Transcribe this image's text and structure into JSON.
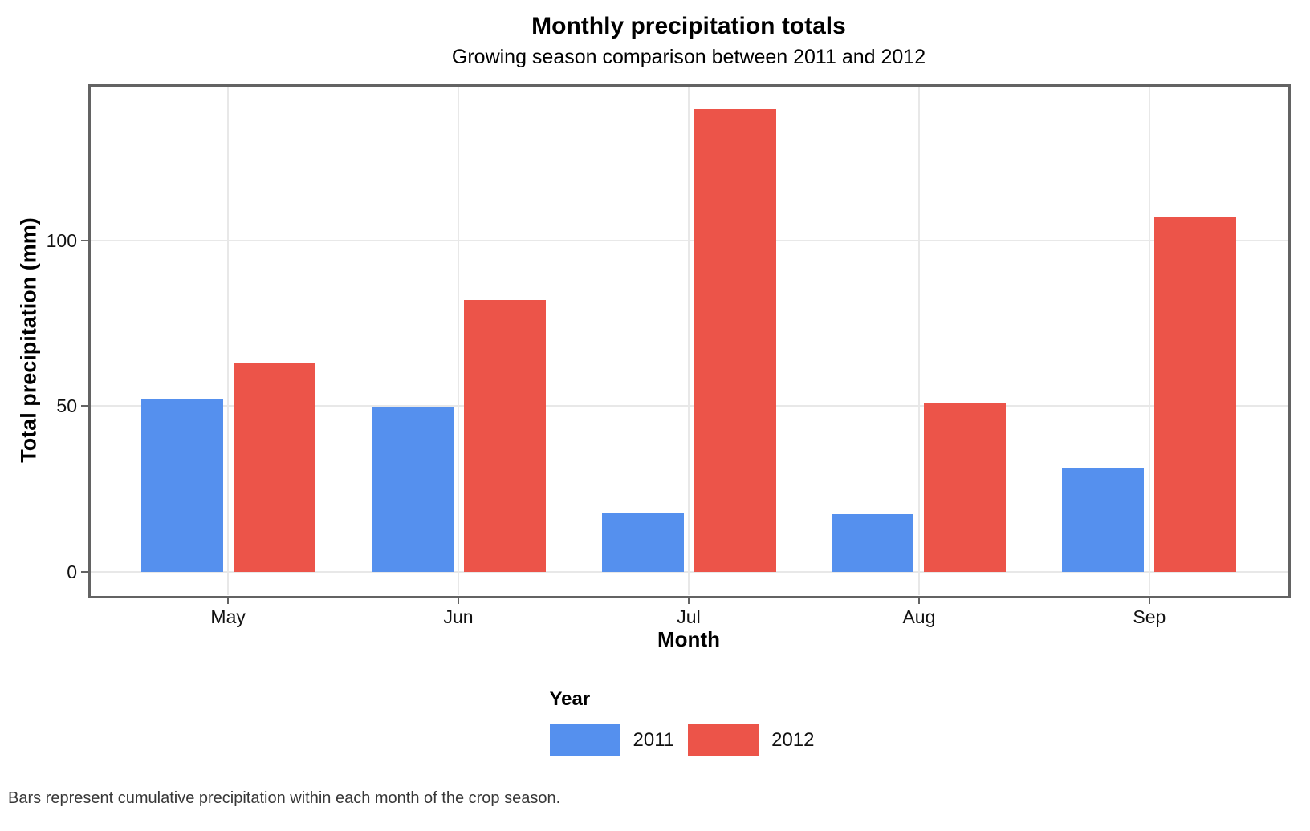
{
  "caption": "Bars represent cumulative precipitation within each month of the crop season.",
  "chart_data": {
    "type": "bar",
    "title": "Monthly precipitation totals",
    "subtitle": "Growing season comparison between 2011 and 2012",
    "xlabel": "Month",
    "ylabel": "Total precipitation (mm)",
    "categories": [
      "May",
      "Jun",
      "Jul",
      "Aug",
      "Sep"
    ],
    "series": [
      {
        "name": "2011",
        "color": "#5590EE",
        "values": [
          52,
          49.5,
          18,
          17.5,
          31.5
        ]
      },
      {
        "name": "2012",
        "color": "#EC5449",
        "values": [
          63,
          82,
          139.5,
          51,
          107
        ]
      }
    ],
    "yticks": [
      0,
      50,
      100
    ],
    "ylim": [
      0,
      147
    ],
    "grid": "major",
    "legend_title": "Year",
    "legend_position": "bottom",
    "colors": {
      "series_2011": "#5590EE",
      "series_2012": "#EC5449",
      "gridline": "#e8e8e8",
      "panel_border": "#636363",
      "caption_text": "#383838"
    }
  }
}
